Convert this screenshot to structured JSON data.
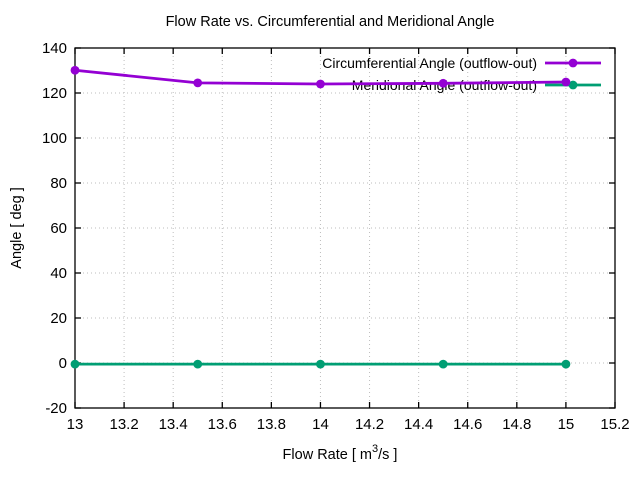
{
  "window": {
    "background": "#ffffff"
  },
  "chart_data": {
    "type": "line",
    "title": "Flow Rate vs. Circumferential and Meridional Angle",
    "xlabel": "Flow Rate [ m^3/s ]",
    "xlabel_parts": {
      "prefix": "Flow Rate [ m",
      "sup": "3",
      "suffix": "/s ]"
    },
    "ylabel": "Angle [ deg ]",
    "xlim": [
      13,
      15.2
    ],
    "ylim": [
      -20,
      140
    ],
    "xtick_values": [
      13,
      13.2,
      13.4,
      13.6,
      13.8,
      14,
      14.2,
      14.4,
      14.6,
      14.8,
      15,
      15.2
    ],
    "xtick_labels": [
      "13",
      "13.2",
      "13.4",
      "13.6",
      "13.8",
      "14",
      "14.2",
      "14.4",
      "14.6",
      "14.8",
      "15",
      "15.2"
    ],
    "ytick_values": [
      -20,
      0,
      20,
      40,
      60,
      80,
      100,
      120,
      140
    ],
    "ytick_labels": [
      "-20",
      "0",
      "20",
      "40",
      "60",
      "80",
      "100",
      "120",
      "140"
    ],
    "grid": true,
    "legend_position": "top-right-inside",
    "x": [
      13,
      13.5,
      14,
      14.5,
      15
    ],
    "series": [
      {
        "name": "Circumferential Angle (outflow-out)",
        "color": "#9400d3",
        "values": [
          130.1,
          124.5,
          124.0,
          124.3,
          124.9
        ]
      },
      {
        "name": "Meridional Angle (outflow-out)",
        "color": "#009e73",
        "values": [
          -0.5,
          -0.5,
          -0.5,
          -0.5,
          -0.5
        ]
      }
    ],
    "style": {
      "grid_color": "#bdbdbd",
      "border_color": "#000000",
      "text_color": "#000000",
      "background": "#ffffff"
    }
  }
}
